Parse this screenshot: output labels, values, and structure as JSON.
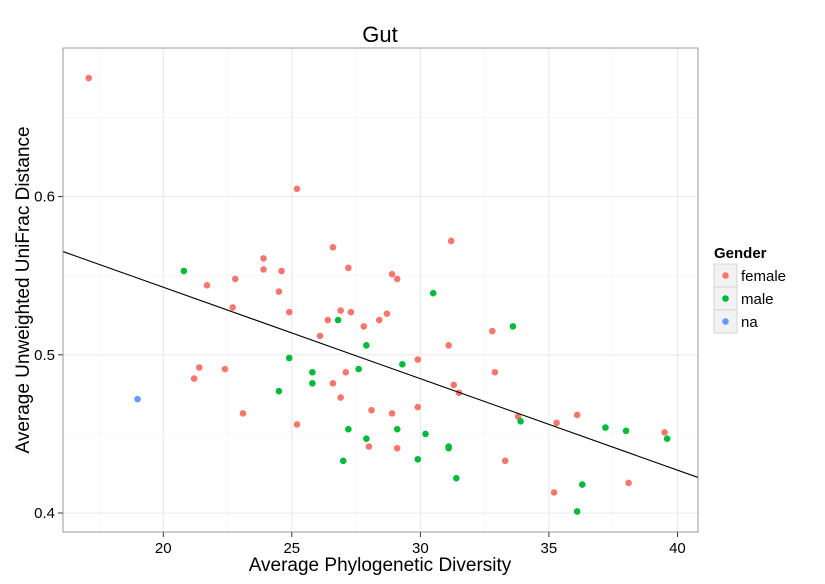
{
  "chart_data": {
    "type": "scatter",
    "title": "Gut",
    "xlabel": "Average Phylogenetic Diversity",
    "ylabel": "Average Unweighted UniFrac Distance",
    "xlim": [
      16.1,
      40.8
    ],
    "ylim": [
      0.388,
      0.694
    ],
    "xticks": [
      20,
      25,
      30,
      35,
      40
    ],
    "xtick_labels": [
      "20",
      "25",
      "30",
      "35",
      "40"
    ],
    "yticks": [
      0.4,
      0.5,
      0.6
    ],
    "ytick_labels": [
      "0.4",
      "0.5",
      "0.6"
    ],
    "grid": true,
    "legend": {
      "title": "Gender",
      "placement": "right",
      "entries": [
        {
          "label": "female",
          "color": "#F8766D"
        },
        {
          "label": "male",
          "color": "#00BA38"
        },
        {
          "label": "na",
          "color": "#619CFF"
        }
      ]
    },
    "trend_line": {
      "x": [
        16.1,
        40.8
      ],
      "y": [
        0.5653,
        0.4225
      ]
    },
    "series": [
      {
        "name": "female",
        "color": "#F8766D",
        "points": [
          [
            17.1,
            0.675
          ],
          [
            21.2,
            0.485
          ],
          [
            21.4,
            0.492
          ],
          [
            21.7,
            0.544
          ],
          [
            22.4,
            0.491
          ],
          [
            22.7,
            0.53
          ],
          [
            22.8,
            0.548
          ],
          [
            23.1,
            0.463
          ],
          [
            23.9,
            0.561
          ],
          [
            23.9,
            0.554
          ],
          [
            24.5,
            0.54
          ],
          [
            24.6,
            0.553
          ],
          [
            24.9,
            0.527
          ],
          [
            25.2,
            0.605
          ],
          [
            25.2,
            0.456
          ],
          [
            26.1,
            0.512
          ],
          [
            26.4,
            0.522
          ],
          [
            26.6,
            0.568
          ],
          [
            26.6,
            0.482
          ],
          [
            26.9,
            0.528
          ],
          [
            26.9,
            0.473
          ],
          [
            27.1,
            0.489
          ],
          [
            27.2,
            0.555
          ],
          [
            27.3,
            0.527
          ],
          [
            27.8,
            0.518
          ],
          [
            28.0,
            0.442
          ],
          [
            28.1,
            0.465
          ],
          [
            28.4,
            0.522
          ],
          [
            28.7,
            0.526
          ],
          [
            28.9,
            0.551
          ],
          [
            28.9,
            0.463
          ],
          [
            29.1,
            0.548
          ],
          [
            29.1,
            0.441
          ],
          [
            29.9,
            0.497
          ],
          [
            29.9,
            0.467
          ],
          [
            31.1,
            0.506
          ],
          [
            31.2,
            0.572
          ],
          [
            31.3,
            0.481
          ],
          [
            31.5,
            0.476
          ],
          [
            32.8,
            0.515
          ],
          [
            32.9,
            0.489
          ],
          [
            33.3,
            0.433
          ],
          [
            33.8,
            0.461
          ],
          [
            35.2,
            0.413
          ],
          [
            35.3,
            0.457
          ],
          [
            36.1,
            0.462
          ],
          [
            38.1,
            0.419
          ],
          [
            39.5,
            0.451
          ]
        ]
      },
      {
        "name": "male",
        "color": "#00BA38",
        "points": [
          [
            20.8,
            0.553
          ],
          [
            24.5,
            0.477
          ],
          [
            24.9,
            0.498
          ],
          [
            25.8,
            0.489
          ],
          [
            25.8,
            0.482
          ],
          [
            26.8,
            0.522
          ],
          [
            27.0,
            0.433
          ],
          [
            27.2,
            0.453
          ],
          [
            27.6,
            0.491
          ],
          [
            27.9,
            0.506
          ],
          [
            27.9,
            0.447
          ],
          [
            29.1,
            0.453
          ],
          [
            29.3,
            0.494
          ],
          [
            29.9,
            0.434
          ],
          [
            30.2,
            0.45
          ],
          [
            30.5,
            0.539
          ],
          [
            31.1,
            0.442
          ],
          [
            31.1,
            0.441
          ],
          [
            31.4,
            0.422
          ],
          [
            33.6,
            0.518
          ],
          [
            33.9,
            0.458
          ],
          [
            36.1,
            0.401
          ],
          [
            36.3,
            0.418
          ],
          [
            37.2,
            0.454
          ],
          [
            38.0,
            0.452
          ],
          [
            39.6,
            0.447
          ]
        ]
      },
      {
        "name": "na",
        "color": "#619CFF",
        "points": [
          [
            19.0,
            0.472
          ]
        ]
      }
    ]
  }
}
